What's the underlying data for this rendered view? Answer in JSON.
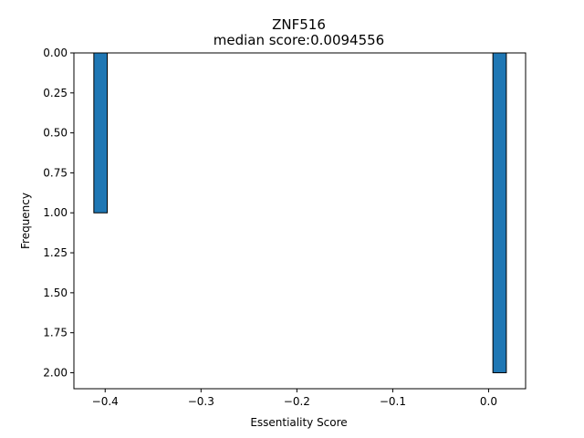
{
  "chart_data": {
    "type": "bar",
    "title": "ZNF516",
    "subtitle": "median score:0.0094556",
    "xlabel": "Essentiality Score",
    "ylabel": "Frequency",
    "xlim": [
      -0.4326,
      0.0386
    ],
    "ylim": [
      2.1,
      0.0
    ],
    "y_inverted": true,
    "x_ticks": [
      -0.4,
      -0.3,
      -0.2,
      -0.1,
      0.0
    ],
    "x_tick_labels": [
      "−0.4",
      "−0.3",
      "−0.2",
      "−0.1",
      "0.0"
    ],
    "y_ticks": [
      0.0,
      0.25,
      0.5,
      0.75,
      1.0,
      1.25,
      1.5,
      1.75,
      2.0
    ],
    "y_tick_labels": [
      "0.00",
      "0.25",
      "0.50",
      "0.75",
      "1.00",
      "1.25",
      "1.50",
      "1.75",
      "2.00"
    ],
    "bars": [
      {
        "x0": -0.4118,
        "x1": -0.3978,
        "value": 1
      },
      {
        "x0": 0.0045,
        "x1": 0.0185,
        "value": 2
      }
    ],
    "bar_color": "#1f77b4",
    "bar_edge_color": "#000000",
    "grid": false
  }
}
